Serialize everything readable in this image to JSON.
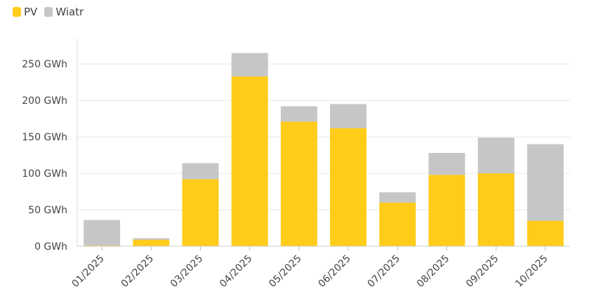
{
  "legend": [
    {
      "label": "PV",
      "color": "#ffcc1a"
    },
    {
      "label": "Wiatr",
      "color": "#c6c6c6"
    }
  ],
  "chart_data": {
    "type": "bar",
    "stacked": true,
    "categories": [
      "01/2025",
      "02/2025",
      "03/2025",
      "04/2025",
      "05/2025",
      "06/2025",
      "07/2025",
      "08/2025",
      "09/2025",
      "10/2025"
    ],
    "series": [
      {
        "name": "PV",
        "color": "#ffcc1a",
        "values": [
          1,
          9,
          92,
          233,
          171,
          162,
          60,
          98,
          100,
          35
        ]
      },
      {
        "name": "Wiatr",
        "color": "#c6c6c6",
        "values": [
          35,
          2,
          22,
          32,
          21,
          33,
          14,
          30,
          49,
          105
        ]
      }
    ],
    "yticks": [
      "0 GWh",
      "50 GWh",
      "100 GWh",
      "150 GWh",
      "200 GWh",
      "250 GWh"
    ],
    "ytick_values": [
      0,
      50,
      100,
      150,
      200,
      250
    ],
    "ylim": [
      0,
      280
    ],
    "grid": true,
    "legend_position": "top-left"
  }
}
